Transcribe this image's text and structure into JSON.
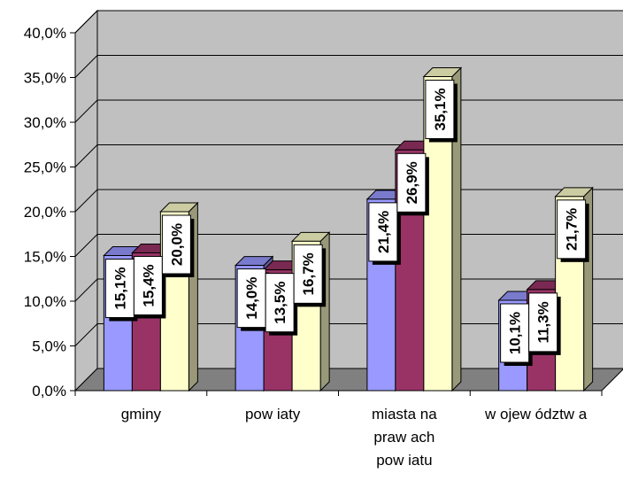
{
  "chart_data": {
    "type": "bar",
    "categories": [
      [
        "gminy"
      ],
      [
        "pow iaty"
      ],
      [
        "miasta na",
        "praw ach",
        "pow iatu"
      ],
      [
        "w ojew ództw a"
      ]
    ],
    "series": [
      {
        "values": [
          15.1,
          14.0,
          21.4,
          10.1
        ],
        "labels": [
          "15,1%",
          "14,0%",
          "21,4%",
          "10,1%"
        ]
      },
      {
        "values": [
          15.4,
          13.5,
          26.9,
          11.3
        ],
        "labels": [
          "15,4%",
          "13,5%",
          "26,9%",
          "11,3%"
        ]
      },
      {
        "values": [
          20.0,
          16.7,
          35.1,
          21.7
        ],
        "labels": [
          "20,0%",
          "16,7%",
          "35,1%",
          "21,7%"
        ]
      }
    ],
    "ylim": [
      0,
      40
    ],
    "yticks": [
      "0,0%",
      "5,0%",
      "10,0%",
      "15,0%",
      "20,0%",
      "25,0%",
      "30,0%",
      "35,0%",
      "40,0%"
    ],
    "grid": true,
    "three_d": true,
    "colors": {
      "series": [
        "#9999ff",
        "#993366",
        "#ffffcc"
      ],
      "series_top": [
        "#7a7acc",
        "#7a2952",
        "#cccca3"
      ],
      "series_side": [
        "#5c5c99",
        "#5c1f3d",
        "#99997a"
      ],
      "wall": "#c0c0c0",
      "floor": "#808080",
      "grid": "#000000"
    }
  }
}
